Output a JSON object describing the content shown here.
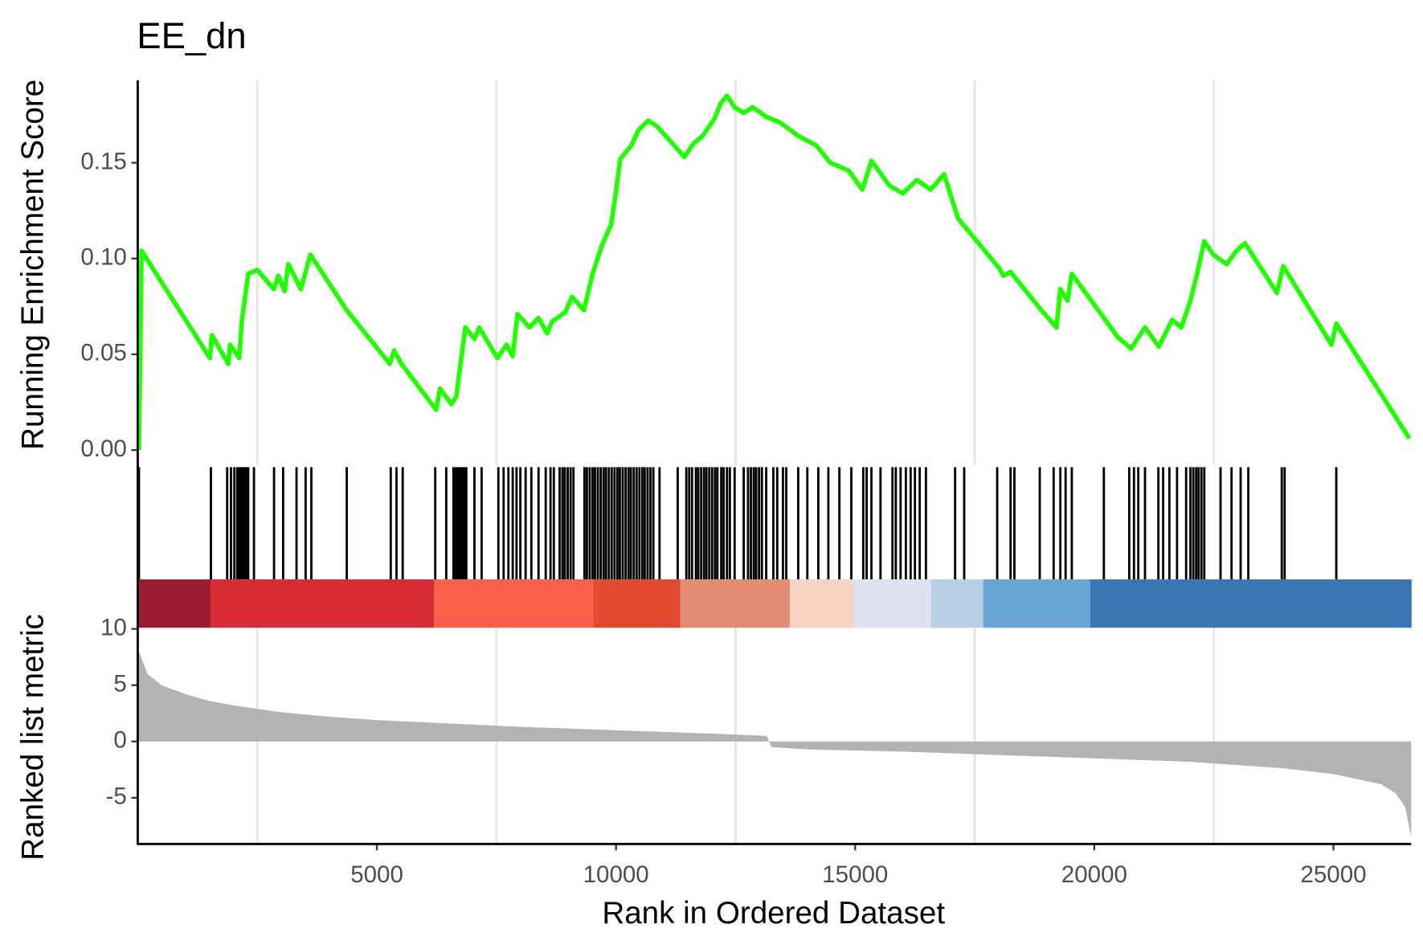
{
  "chart_data": [
    {
      "type": "line",
      "title": "EE_dn",
      "ylabel": "Running Enrichment Score",
      "color": "#22ff00",
      "xlim": [
        0,
        26625
      ],
      "ylim": [
        -0.008,
        0.193
      ],
      "yticks": [
        {
          "value": 0,
          "label": "0.00"
        },
        {
          "value": 0.05,
          "label": "0.05"
        },
        {
          "value": 0.1,
          "label": "0.10"
        },
        {
          "value": 0.15,
          "label": "0.15"
        }
      ],
      "x": [
        25,
        80,
        1510,
        1550,
        1894,
        1930,
        2120,
        2180,
        2310,
        2500,
        2845,
        2940,
        3070,
        3150,
        3410,
        3610,
        4370,
        5270,
        5360,
        5515,
        6240,
        6320,
        6560,
        6660,
        6850,
        7040,
        7140,
        7520,
        7710,
        7840,
        7940,
        8190,
        8380,
        8560,
        8660,
        8940,
        9080,
        9330,
        9510,
        9710,
        9900,
        10000,
        10090,
        10320,
        10470,
        10670,
        10860,
        11430,
        11620,
        11810,
        12060,
        12190,
        12320,
        12480,
        12670,
        12860,
        13140,
        13430,
        13810,
        14190,
        14480,
        14860,
        15150,
        15340,
        15720,
        16000,
        16290,
        16580,
        16860,
        17150,
        18010,
        18100,
        18250,
        18860,
        19210,
        19290,
        19440,
        19530,
        20490,
        20770,
        21060,
        21350,
        21630,
        21820,
        22010,
        22150,
        22300,
        22490,
        22770,
        22970,
        23150,
        23820,
        23950,
        24960,
        25060,
        26590
      ],
      "values": [
        0,
        0.104,
        0.048,
        0.06,
        0.045,
        0.055,
        0.048,
        0.068,
        0.092,
        0.094,
        0.084,
        0.091,
        0.083,
        0.097,
        0.084,
        0.102,
        0.073,
        0.045,
        0.052,
        0.045,
        0.021,
        0.032,
        0.024,
        0.028,
        0.064,
        0.058,
        0.064,
        0.048,
        0.055,
        0.049,
        0.071,
        0.064,
        0.069,
        0.061,
        0.067,
        0.072,
        0.08,
        0.073,
        0.092,
        0.107,
        0.118,
        0.135,
        0.152,
        0.159,
        0.167,
        0.172,
        0.169,
        0.153,
        0.16,
        0.164,
        0.173,
        0.181,
        0.185,
        0.179,
        0.176,
        0.179,
        0.174,
        0.171,
        0.164,
        0.159,
        0.15,
        0.146,
        0.136,
        0.151,
        0.138,
        0.134,
        0.141,
        0.136,
        0.144,
        0.121,
        0.095,
        0.091,
        0.093,
        0.074,
        0.064,
        0.084,
        0.078,
        0.092,
        0.059,
        0.053,
        0.064,
        0.054,
        0.068,
        0.064,
        0.078,
        0.092,
        0.109,
        0.102,
        0.097,
        0.104,
        0.108,
        0.082,
        0.096,
        0.055,
        0.066,
        0.006
      ]
    },
    {
      "type": "rug",
      "xlim": [
        0,
        26625
      ],
      "x": [
        25,
        1530,
        1870,
        1950,
        2020,
        2080,
        2120,
        2160,
        2200,
        2240,
        2270,
        2310,
        2430,
        2850,
        3040,
        3320,
        3510,
        3630,
        4370,
        5290,
        5410,
        5540,
        6220,
        6450,
        6600,
        6640,
        6680,
        6720,
        6760,
        6790,
        6830,
        6870,
        7040,
        7190,
        7540,
        7650,
        7750,
        7840,
        7920,
        8000,
        8110,
        8230,
        8380,
        8530,
        8630,
        8700,
        8820,
        8880,
        8930,
        8990,
        9050,
        9110,
        9340,
        9390,
        9450,
        9510,
        9560,
        9620,
        9680,
        9740,
        9790,
        9850,
        9910,
        9970,
        10030,
        10080,
        10140,
        10200,
        10260,
        10310,
        10370,
        10430,
        10490,
        10550,
        10600,
        10660,
        10720,
        10780,
        10910,
        11290,
        11470,
        11530,
        11590,
        11670,
        11720,
        11780,
        11840,
        11890,
        11950,
        12010,
        12070,
        12120,
        12200,
        12250,
        12320,
        12380,
        12480,
        12670,
        12760,
        12820,
        12880,
        12930,
        12990,
        13050,
        13140,
        13290,
        13370,
        13490,
        13560,
        13810,
        14000,
        14230,
        14440,
        14670,
        14920,
        15170,
        15240,
        15340,
        15530,
        15780,
        15850,
        15950,
        16060,
        16160,
        16250,
        16350,
        16480,
        17090,
        17280,
        17970,
        18250,
        18330,
        18860,
        19150,
        19290,
        19400,
        19530,
        20200,
        20730,
        20830,
        20920,
        21060,
        21340,
        21440,
        21570,
        21730,
        21920,
        22010,
        22070,
        22130,
        22180,
        22240,
        22300,
        22640,
        22870,
        23060,
        23220,
        23920,
        23980,
        25060
      ]
    },
    {
      "type": "area",
      "ylabel": "Ranked list metric",
      "xlabel": "Rank in Ordered Dataset",
      "color": "#b3b3b3",
      "xlim": [
        0,
        26625
      ],
      "xticks": [
        5000,
        10000,
        15000,
        20000,
        25000
      ],
      "xgrid": [
        2500,
        7500,
        12500,
        17500,
        22500
      ],
      "ylim": [
        -9.1,
        10.1
      ],
      "yticks": [
        -5,
        0,
        5,
        10
      ],
      "x": [
        0,
        200,
        500,
        1000,
        1500,
        2000,
        3000,
        4000,
        5000,
        6000,
        8000,
        10000,
        12000,
        13150,
        13250,
        14000,
        16000,
        18000,
        20000,
        22000,
        24000,
        25000,
        26000,
        26300,
        26500,
        26625
      ],
      "values": [
        8.3,
        6.0,
        5.0,
        4.2,
        3.6,
        3.2,
        2.6,
        2.2,
        1.9,
        1.7,
        1.3,
        1.0,
        0.7,
        0.5,
        -0.5,
        -0.7,
        -0.9,
        -1.2,
        -1.5,
        -1.8,
        -2.4,
        -2.9,
        -3.8,
        -4.6,
        -5.8,
        -8.5
      ]
    }
  ]
}
